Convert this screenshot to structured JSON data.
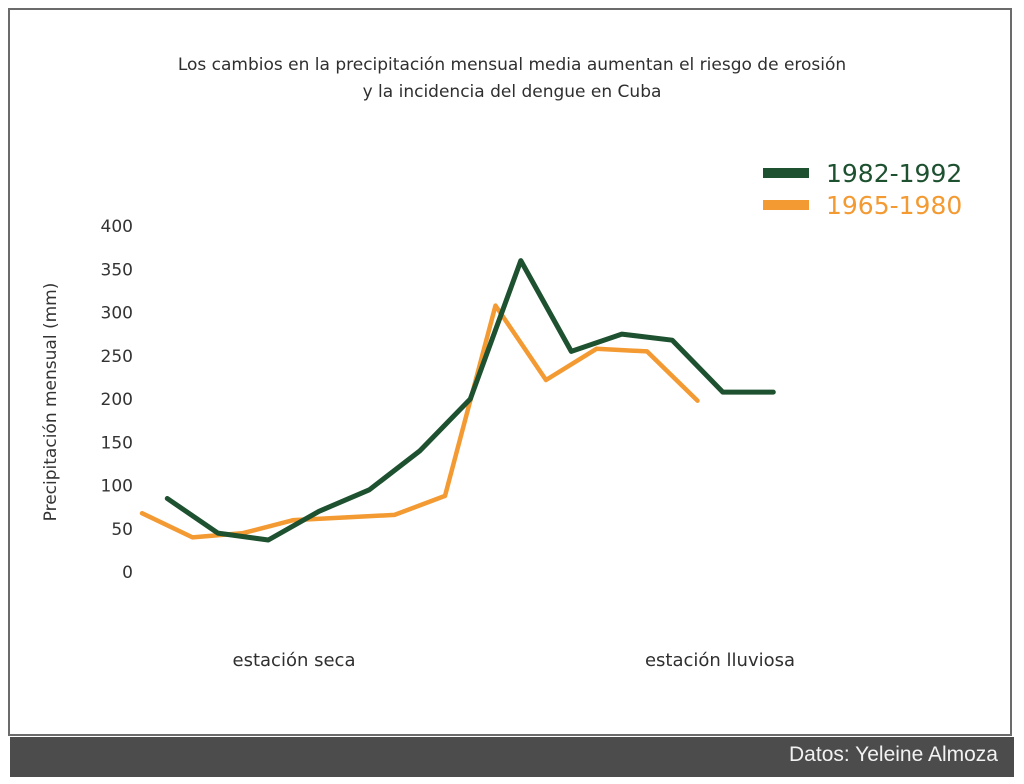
{
  "chart_data": {
    "type": "line",
    "title_lines": [
      "Los cambios en la precipitación mensual media aumentan el riesgo de erosión",
      "y la incidencia del dengue en Cuba"
    ],
    "ylabel": "Precipitación mensual (mm)",
    "ylim": [
      0,
      400
    ],
    "yticks": [
      0,
      50,
      100,
      150,
      200,
      250,
      300,
      350,
      400
    ],
    "x": [
      1,
      2,
      3,
      4,
      5,
      6,
      7,
      8,
      9,
      10,
      11,
      12,
      13
    ],
    "season_labels": [
      "estación seca",
      "estación lluviosa"
    ],
    "legend_position": "top-right",
    "grid": false,
    "series": [
      {
        "name": "1982-1992",
        "color": "#1d5130",
        "x": [
          1.5,
          2.5,
          3.5,
          4.5,
          5.5,
          6.5,
          7.5,
          8.5,
          9.5,
          10.5,
          11.5,
          12.5,
          13.5
        ],
        "values": [
          85,
          45,
          37,
          70,
          95,
          140,
          200,
          360,
          255,
          275,
          268,
          208,
          208
        ]
      },
      {
        "name": "1965-1980",
        "color": "#f39a33",
        "x": [
          1,
          2,
          3,
          4,
          5,
          6,
          7,
          8,
          9,
          10,
          11,
          12
        ],
        "values": [
          68,
          40,
          45,
          60,
          63,
          66,
          88,
          308,
          222,
          258,
          255,
          198
        ]
      }
    ]
  },
  "source": "Datos: Yeleine Almoza"
}
